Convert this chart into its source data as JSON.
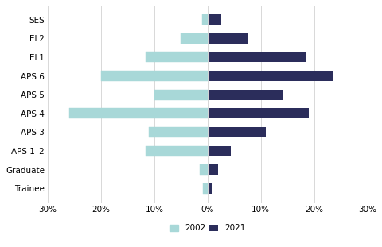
{
  "categories": [
    "SES",
    "EL2",
    "EL1",
    "APS 6",
    "APS 5",
    "APS 4",
    "APS 3",
    "APS 1–2",
    "Graduate",
    "Trainee"
  ],
  "values_2002": [
    1.0,
    5.0,
    11.7,
    20.0,
    10.0,
    26.0,
    11.0,
    11.6,
    1.5,
    0.8
  ],
  "values_2021": [
    2.5,
    7.5,
    18.5,
    23.5,
    14.0,
    19.0,
    11.0,
    4.3,
    2.0,
    0.7
  ],
  "color_2002": "#a8d8d8",
  "color_2021": "#2b2d5b",
  "hatch_2002": "xx",
  "xlim": [
    -30,
    30
  ],
  "xticks": [
    -30,
    -20,
    -10,
    0,
    10,
    20,
    30
  ],
  "xticklabels": [
    "30%",
    "20%",
    "10%",
    "0%",
    "10%",
    "20%",
    "30%"
  ],
  "bar_height": 0.55,
  "legend_label_2002": "2002",
  "legend_label_2021": "2021",
  "background_color": "#ffffff",
  "grid_color": "#d8d8d8",
  "fontsize_labels": 7.5,
  "fontsize_ticks": 7.5
}
